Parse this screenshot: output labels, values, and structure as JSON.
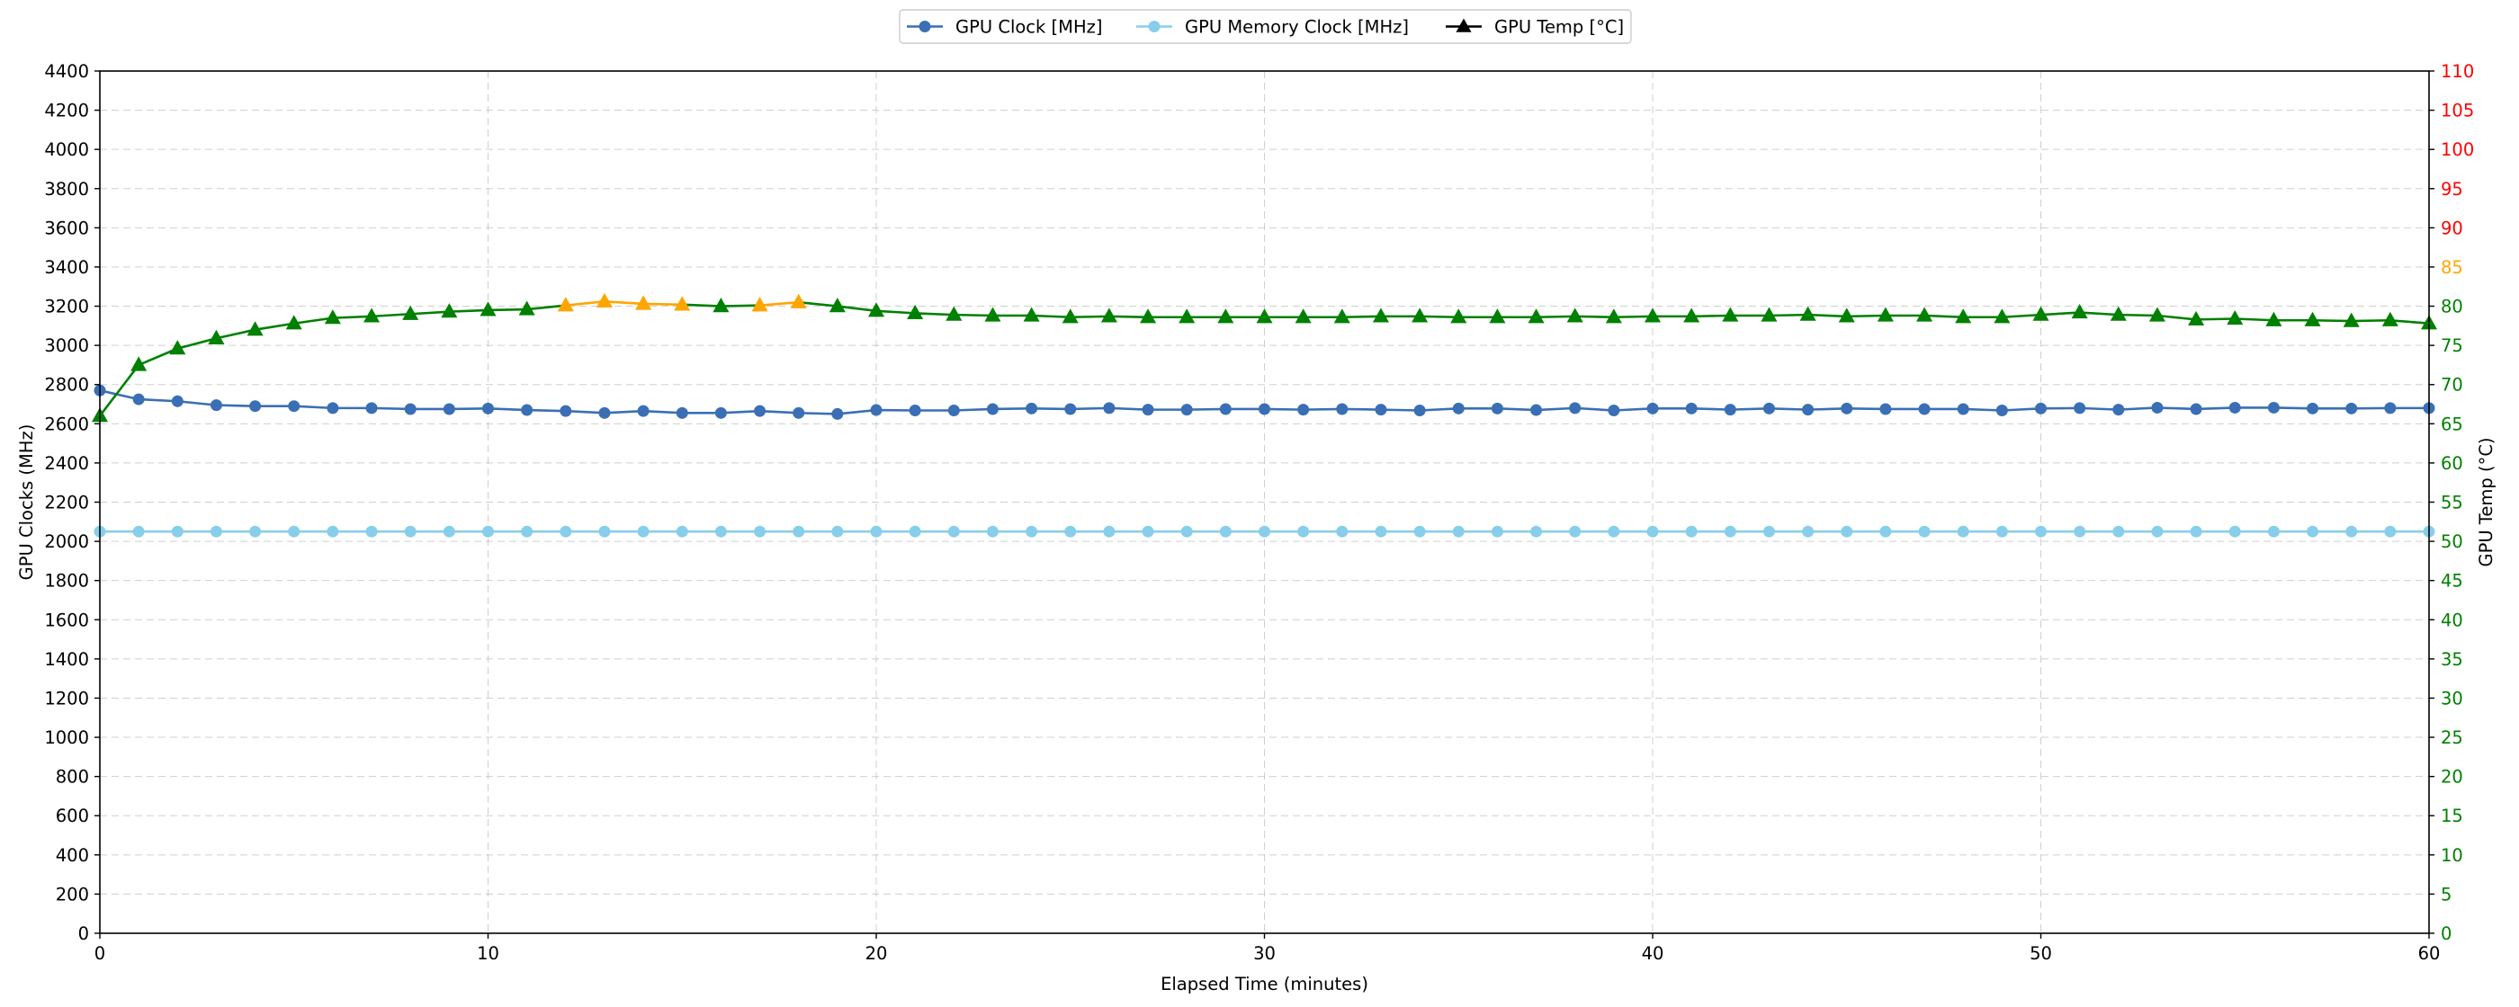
{
  "chart_data": {
    "type": "line",
    "xlabel": "Elapsed Time (minutes)",
    "ylabel_left": "GPU Clocks (MHz)",
    "ylabel_right": "GPU Temp (°C)",
    "x_ticks": [
      0,
      10,
      20,
      30,
      40,
      50,
      60
    ],
    "xlim": [
      0,
      60
    ],
    "ylim_left": [
      0,
      4400
    ],
    "ylim_right": [
      0,
      110
    ],
    "y_ticks_left": [
      0,
      200,
      400,
      600,
      800,
      1000,
      1200,
      1400,
      1600,
      1800,
      2000,
      2200,
      2400,
      2600,
      2800,
      3000,
      3200,
      3400,
      3600,
      3800,
      4000,
      4200,
      4400
    ],
    "y_ticks_right": [
      0,
      5,
      10,
      15,
      20,
      25,
      30,
      35,
      40,
      45,
      50,
      55,
      60,
      65,
      70,
      75,
      80,
      85,
      90,
      95,
      100,
      105,
      110
    ],
    "right_tick_colors": {
      "normal": "#008000",
      "warm": "#FFA500",
      "hot": "#FF0000"
    },
    "temp_thresholds": {
      "warm_at": 80,
      "hot_at": 90
    },
    "grid": true,
    "legend_position": "top-center",
    "x": [
      0,
      1,
      2,
      3,
      4,
      5,
      6,
      7,
      8,
      9,
      10,
      11,
      12,
      13,
      14,
      15,
      16,
      17,
      18,
      19,
      20,
      21,
      22,
      23,
      24,
      25,
      26,
      27,
      28,
      29,
      30,
      31,
      32,
      33,
      34,
      35,
      36,
      37,
      38,
      39,
      40,
      41,
      42,
      43,
      44,
      45,
      46,
      47,
      48,
      49,
      50,
      51,
      52,
      53,
      54,
      55,
      56,
      57,
      58,
      59,
      60
    ],
    "series": [
      {
        "name": "GPU Clock [MHz]",
        "axis": "left",
        "color": "#3A6FB5",
        "marker": "circle",
        "values": [
          2770,
          2725,
          2715,
          2695,
          2690,
          2690,
          2680,
          2680,
          2675,
          2675,
          2678,
          2670,
          2665,
          2655,
          2665,
          2655,
          2655,
          2665,
          2655,
          2650,
          2670,
          2668,
          2668,
          2675,
          2678,
          2675,
          2680,
          2672,
          2672,
          2675,
          2675,
          2672,
          2675,
          2672,
          2668,
          2678,
          2678,
          2670,
          2680,
          2668,
          2678,
          2678,
          2672,
          2678,
          2672,
          2678,
          2675,
          2675,
          2675,
          2668,
          2678,
          2680,
          2672,
          2682,
          2675,
          2682,
          2682,
          2678,
          2678,
          2680,
          2680
        ]
      },
      {
        "name": "GPU Memory Clock [MHz]",
        "axis": "left",
        "color": "#87CEEB",
        "marker": "circle",
        "values": [
          2050,
          2050,
          2050,
          2050,
          2050,
          2050,
          2050,
          2050,
          2050,
          2050,
          2050,
          2050,
          2050,
          2050,
          2050,
          2050,
          2050,
          2050,
          2050,
          2050,
          2050,
          2050,
          2050,
          2050,
          2050,
          2050,
          2050,
          2050,
          2050,
          2050,
          2050,
          2050,
          2050,
          2050,
          2050,
          2050,
          2050,
          2050,
          2050,
          2050,
          2050,
          2050,
          2050,
          2050,
          2050,
          2050,
          2050,
          2050,
          2050,
          2050,
          2050,
          2050,
          2050,
          2050,
          2050,
          2050,
          2050,
          2050,
          2050,
          2050,
          2050
        ]
      },
      {
        "name": "GPU Temp [°C]",
        "axis": "right",
        "color": "#008000",
        "warm_color": "#FFA500",
        "legend_color": "#000000",
        "marker": "triangle",
        "values": [
          66,
          72.5,
          74.6,
          75.9,
          77,
          77.8,
          78.5,
          78.7,
          79,
          79.3,
          79.5,
          79.6,
          80.1,
          80.6,
          80.3,
          80.2,
          80,
          80.1,
          80.5,
          80,
          79.4,
          79.1,
          78.9,
          78.8,
          78.8,
          78.6,
          78.7,
          78.6,
          78.6,
          78.6,
          78.6,
          78.6,
          78.6,
          78.7,
          78.7,
          78.6,
          78.6,
          78.6,
          78.7,
          78.6,
          78.7,
          78.7,
          78.8,
          78.8,
          78.9,
          78.7,
          78.8,
          78.8,
          78.6,
          78.6,
          78.9,
          79.2,
          78.9,
          78.8,
          78.3,
          78.4,
          78.2,
          78.2,
          78.1,
          78.2,
          77.8
        ]
      }
    ]
  }
}
